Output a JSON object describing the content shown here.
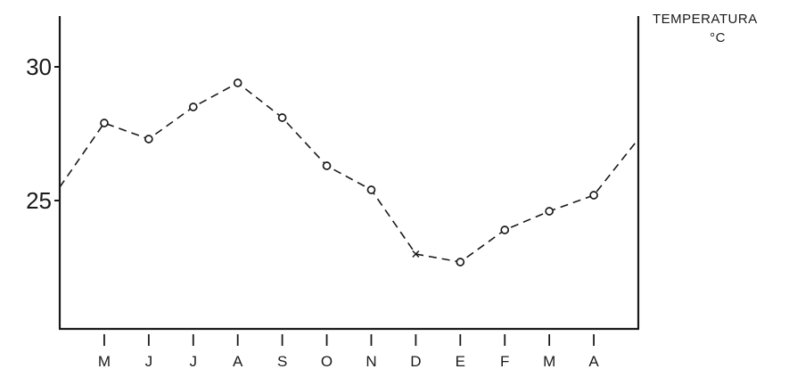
{
  "chart_data": {
    "type": "line",
    "title": "",
    "xlabel": "",
    "ylabel": "TEMPERATURA °C",
    "ylabel_parts": [
      "TEMPERATURA",
      "°C"
    ],
    "categories": [
      "M",
      "J",
      "J",
      "A",
      "S",
      "O",
      "N",
      "D",
      "E",
      "F",
      "M",
      "A"
    ],
    "y_ticks": [
      25,
      30
    ],
    "y_tick_labels": [
      "25",
      "30"
    ],
    "ylim": [
      20.2,
      31.9
    ],
    "x_range": [
      0,
      13
    ],
    "series": [
      {
        "values": [
          27.9,
          27.3,
          28.5,
          29.4,
          28.1,
          26.3,
          25.4,
          23.0,
          22.7,
          23.9,
          24.6,
          25.2
        ],
        "markers": [
          "o",
          "o",
          "o",
          "o",
          "o",
          "o",
          "o",
          "x",
          "o",
          "o",
          "o",
          "o"
        ],
        "line_style": "dashed",
        "lead_in": {
          "x": 0,
          "y": 25.5
        },
        "lead_out": {
          "x": 13,
          "y": 27.3
        }
      }
    ],
    "grid": false,
    "legend": "none",
    "colors": {
      "ink": "#1a1a1a",
      "background": "#ffffff"
    }
  }
}
